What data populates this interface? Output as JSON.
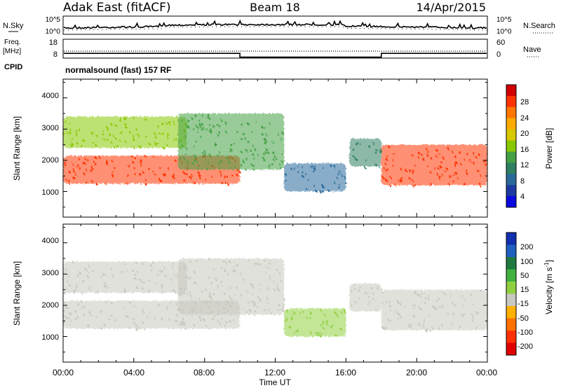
{
  "header": {
    "station": "Adak East (fitACF)",
    "beam": "Beam 18",
    "date": "14/Apr/2015"
  },
  "aux_panels": {
    "nsky": {
      "label": "N.Sky",
      "ticks": [
        "10^5",
        "10^0"
      ],
      "right_label": "N.Search",
      "right_ticks": [
        "10^5",
        "10^0"
      ]
    },
    "freq": {
      "label_line1": "Freq.",
      "label_line2": "[MHz]",
      "ticks": [
        "18",
        "8"
      ],
      "right_label": "Nave",
      "right_ticks": [
        "60",
        "0"
      ]
    },
    "cpid": {
      "label": "CPID",
      "value": "normalsound (fast) 157 RF"
    }
  },
  "panels": {
    "power": {
      "ylabel": "Slant Range [km]",
      "yticks": [
        "4000",
        "3000",
        "2000",
        "1000"
      ],
      "colorbar_label": "Power [dB]",
      "colorbar_ticks": [
        "28",
        "24",
        "20",
        "16",
        "12",
        "8",
        "4"
      ],
      "colorbar_colors": [
        "#d00000",
        "#ff3300",
        "#ff7700",
        "#ffaa00",
        "#d8c800",
        "#88c800",
        "#44a044",
        "#2e8060",
        "#2a6a9a",
        "#1e3aa0",
        "#0a0ae0"
      ]
    },
    "velocity": {
      "ylabel": "Slant Range [km]",
      "yticks": [
        "4000",
        "3000",
        "2000",
        "1000"
      ],
      "colorbar_label": "Velocity [m s",
      "colorbar_sup": "-1",
      "colorbar_label_end": "]",
      "colorbar_ticks": [
        "200",
        "100",
        "50",
        "15",
        "-15",
        "-50",
        "-100",
        "-200"
      ],
      "colorbar_colors": [
        "#1030b0",
        "#2060c0",
        "#207a40",
        "#40b040",
        "#90d040",
        "#c8c8c0",
        "#ffb000",
        "#ff7000",
        "#ff3000",
        "#e00000"
      ]
    }
  },
  "xaxis": {
    "ticks": [
      "00:00",
      "04:00",
      "08:00",
      "12:00",
      "16:00",
      "20:00",
      "00:00"
    ],
    "label": "Time UT"
  },
  "chart_data": {
    "type": "heatmap",
    "title": "Adak East (fitACF)  Beam 18  14/Apr/2015",
    "xlabel": "Time UT",
    "ylabel": "Slant Range [km]",
    "xlim_hours": [
      0,
      24
    ],
    "ylim_km": [
      180,
      4600
    ],
    "frequency_mhz": [
      {
        "start_hour": 0,
        "end_hour": 10,
        "value": 12
      },
      {
        "start_hour": 10,
        "end_hour": 18,
        "value": 10
      },
      {
        "start_hour": 18,
        "end_hour": 24,
        "value": 12
      }
    ],
    "power_db_range": [
      0,
      30
    ],
    "velocity_range": [
      -250,
      250
    ],
    "echo_regions": [
      {
        "name": "",
        "start_hour": 0,
        "end_hour": 10,
        "range_start_km": 1250,
        "range_end_km": 2150,
        "power_db": 26,
        "velocity": 0
      },
      {
        "name": "",
        "start_hour": 0,
        "end_hour": 7,
        "range_start_km": 2400,
        "range_end_km": 3400,
        "power_db": 14,
        "velocity": -30
      },
      {
        "name": "",
        "start_hour": 6.5,
        "end_hour": 12.5,
        "range_start_km": 1700,
        "range_end_km": 3500,
        "power_db": 12,
        "velocity": -40
      },
      {
        "name": "",
        "start_hour": 12.5,
        "end_hour": 16,
        "range_start_km": 1000,
        "range_end_km": 1900,
        "power_db": 5,
        "velocity": 40
      },
      {
        "name": "",
        "start_hour": 16.2,
        "end_hour": 18,
        "range_start_km": 1800,
        "range_end_km": 2700,
        "power_db": 8,
        "velocity": -20
      },
      {
        "name": "",
        "start_hour": 18,
        "end_hour": 24,
        "range_start_km": 1200,
        "range_end_km": 2500,
        "power_db": 26,
        "velocity": 0
      }
    ]
  }
}
